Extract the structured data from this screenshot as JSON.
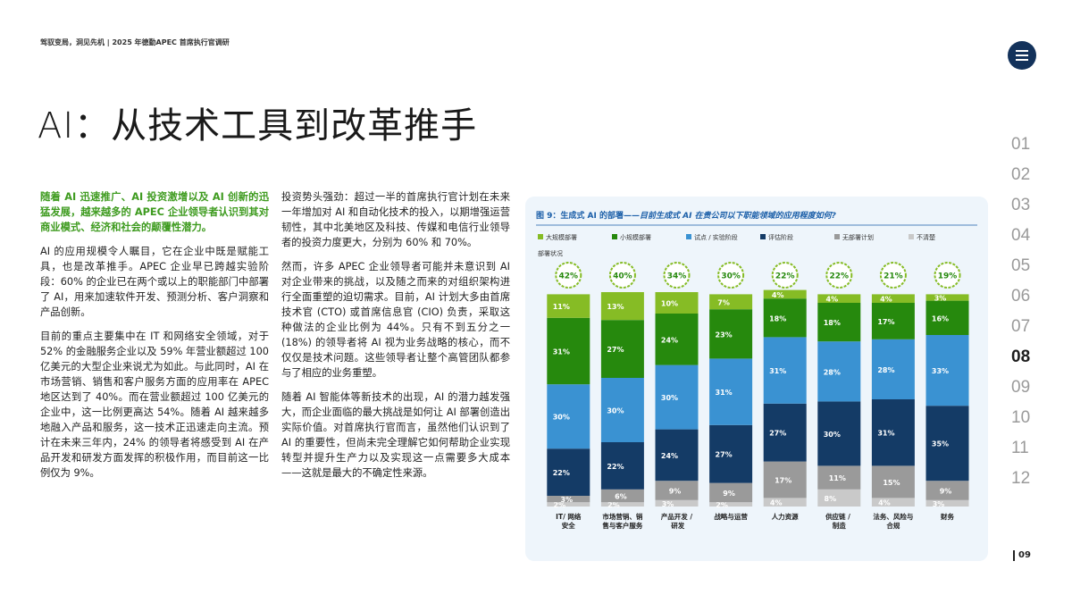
{
  "header": {
    "breadcrumb": "驾驭变局，洞见先机 | 2025 年德勤APEC 首席执行官调研",
    "title": "AI：从技术工具到改革推手"
  },
  "column_left": {
    "paragraphs": [
      "随着 AI 迅速推广、AI 投资激增以及 AI 创新的迅猛发展，越来越多的 APEC 企业领导者认识到其对商业模式、经济和社会的颠覆性潜力。",
      "AI 的应用规模令人瞩目，它在企业中既是赋能工具，也是改革推手。APEC 企业早已跨越实验阶段：60% 的企业已在两个或以上的职能部门中部署了 AI，用来加速软件开发、预测分析、客户洞察和产品创新。",
      "目前的重点主要集中在 IT 和网络安全领域，对于 52% 的金融服务企业以及 59% 年营业额超过 100 亿美元的大型企业来说尤为如此。与此同时，AI 在市场营销、销售和客户服务方面的应用率在 APEC 地区达到了 40%。而在营业额超过 100 亿美元的企业中，这一比例更高达 54%。随着 AI 越来越多地融入产品和服务，这一技术正迅速走向主流。预计在未来三年内，24% 的领导者将感受到 AI 在产品开发和研发方面发挥的积极作用，而目前这一比例仅为 9%。"
    ]
  },
  "column_middle": {
    "paragraphs": [
      "投资势头强劲：超过一半的首席执行官计划在未来一年增加对 AI 和自动化技术的投入，以期增强运营韧性，其中北美地区及科技、传媒和电信行业领导者的投资力度更大，分别为 60% 和 70%。",
      "然而，许多 APEC 企业领导者可能并未意识到 AI 对企业带来的挑战，以及随之而来的对组织架构进行全面重塑的迫切需求。目前，AI 计划大多由首席技术官 (CTO) 或首席信息官 (CIO) 负责，采取这种做法的企业比例为 44%。只有不到五分之一 (18%) 的领导者将 AI 视为业务战略的核心，而不仅仅是技术问题。这些领导者让整个高管团队都参与了相应的业务重塑。",
      "随着 AI 智能体等新技术的出现，AI 的潜力越发强大，而企业面临的最大挑战是如何让 AI 部署创造出实际价值。对首席执行官而言，虽然他们认识到了 AI 的重要性，但尚未完全理解它如何帮助企业实现转型并提升生产力以及实现这一点需要多大成本——这就是最大的不确定性来源。"
    ]
  },
  "nav": {
    "items": [
      "01",
      "02",
      "03",
      "04",
      "05",
      "06",
      "07",
      "08",
      "09",
      "10",
      "11",
      "12"
    ]
  },
  "page_number": "09",
  "chart_data": {
    "type": "bar",
    "stacked": true,
    "title": "图 9：生成式 AI 的部署——",
    "subtitle": "目前生成式 AI 在贵公司以下职能领域的应用程度如何?",
    "categories": [
      "IT/ 网络安全",
      "市场营销、销售与客户服务",
      "产品开发 / 研发",
      "战略与运营",
      "人力资源",
      "供应链 / 制造",
      "法务、风险与合规",
      "财务"
    ],
    "series": [
      {
        "name": "大规模部署",
        "color": "#86bc25",
        "values": [
          11,
          13,
          10,
          7,
          4,
          4,
          4,
          3
        ],
        "value_labels": [
          "11%",
          "13%",
          "10%",
          "7%",
          "4%",
          "4%",
          "4%",
          "3%"
        ]
      },
      {
        "name": "小规模部署",
        "color": "#26890d",
        "values": [
          31,
          27,
          24,
          23,
          18,
          18,
          17,
          16
        ],
        "value_labels": [
          "31%",
          "27%",
          "24%",
          "23%",
          "18%",
          "18%",
          "17%",
          "16%"
        ]
      },
      {
        "name": "试点 / 实验阶段",
        "color": "#3a92d2",
        "values": [
          30,
          30,
          30,
          31,
          31,
          28,
          28,
          33
        ],
        "value_labels": [
          "30%",
          "30%",
          "30%",
          "31%",
          "31%",
          "28%",
          "28%",
          "33%"
        ]
      },
      {
        "name": "评估阶段",
        "color": "#143b66",
        "values": [
          22,
          22,
          24,
          27,
          27,
          30,
          31,
          35
        ],
        "value_labels": [
          "22%",
          "22%",
          "24%",
          "27%",
          "27%",
          "30%",
          "31%",
          "35%"
        ]
      },
      {
        "name": "无部署计划",
        "color": "#9a9a9a",
        "values": [
          3,
          6,
          9,
          9,
          17,
          11,
          15,
          9
        ],
        "value_labels": [
          "3%",
          "6%",
          "9%",
          "9%",
          "17%",
          "11%",
          "15%",
          "9%"
        ]
      },
      {
        "name": "不清楚",
        "color": "#c9c9c9",
        "values": [
          2,
          2,
          3,
          2,
          4,
          8,
          4,
          3
        ],
        "value_labels": [
          "2%",
          "2%",
          "3%",
          "2%",
          "4%",
          "8%",
          "4%",
          "3%"
        ]
      }
    ],
    "totals": {
      "label": "部署状况",
      "color": "#86bc25",
      "values": [
        42,
        40,
        34,
        30,
        22,
        22,
        21,
        19
      ],
      "value_labels": [
        "42%",
        "40%",
        "34%",
        "30%",
        "22%",
        "22%",
        "21%",
        "19%"
      ]
    }
  }
}
